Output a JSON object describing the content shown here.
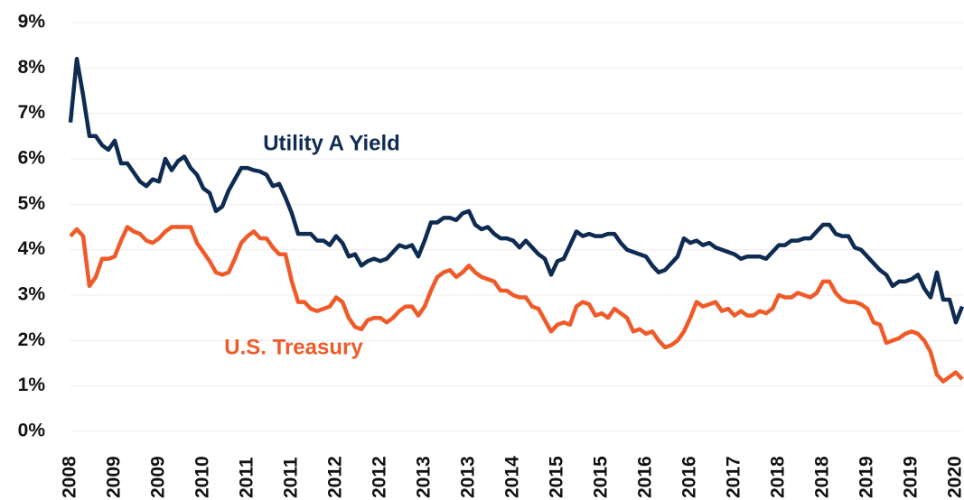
{
  "chart_data": {
    "type": "line",
    "categories": [
      "2008",
      null,
      null,
      null,
      null,
      null,
      null,
      "2009",
      null,
      null,
      null,
      null,
      null,
      null,
      "2009",
      null,
      null,
      null,
      null,
      null,
      null,
      "2010",
      null,
      null,
      null,
      null,
      null,
      null,
      "2011",
      null,
      null,
      null,
      null,
      null,
      null,
      "2011",
      null,
      null,
      null,
      null,
      null,
      null,
      "2012",
      null,
      null,
      null,
      null,
      null,
      null,
      "2012",
      null,
      null,
      null,
      null,
      null,
      null,
      "2013",
      null,
      null,
      null,
      null,
      null,
      null,
      "2013",
      null,
      null,
      null,
      null,
      null,
      null,
      "2014",
      null,
      null,
      null,
      null,
      null,
      null,
      "2015",
      null,
      null,
      null,
      null,
      null,
      null,
      "2015",
      null,
      null,
      null,
      null,
      null,
      null,
      "2016",
      null,
      null,
      null,
      null,
      null,
      null,
      "2016",
      null,
      null,
      null,
      null,
      null,
      null,
      "2017",
      null,
      null,
      null,
      null,
      null,
      null,
      "2018",
      null,
      null,
      null,
      null,
      null,
      null,
      "2018",
      null,
      null,
      null,
      null,
      null,
      null,
      "2019",
      null,
      null,
      null,
      null,
      null,
      null,
      "2019",
      null,
      null,
      null,
      null,
      null,
      null,
      "2020",
      null
    ],
    "series": [
      {
        "name": "Utility A Yield",
        "color": "#0e2b52",
        "values": [
          6.8,
          8.2,
          7.4,
          6.5,
          6.5,
          6.3,
          6.2,
          6.4,
          5.9,
          5.9,
          5.7,
          5.5,
          5.4,
          5.55,
          5.5,
          6.0,
          5.75,
          5.95,
          6.05,
          5.8,
          5.65,
          5.35,
          5.25,
          4.85,
          4.95,
          5.3,
          5.55,
          5.8,
          5.8,
          5.75,
          5.72,
          5.65,
          5.4,
          5.45,
          5.15,
          4.8,
          4.35,
          4.35,
          4.35,
          4.2,
          4.2,
          4.1,
          4.3,
          4.15,
          3.85,
          3.9,
          3.65,
          3.75,
          3.8,
          3.75,
          3.8,
          3.95,
          4.1,
          4.05,
          4.1,
          3.85,
          4.2,
          4.6,
          4.6,
          4.7,
          4.7,
          4.65,
          4.8,
          4.85,
          4.55,
          4.45,
          4.5,
          4.35,
          4.25,
          4.25,
          4.2,
          4.05,
          4.2,
          4.05,
          3.9,
          3.8,
          3.45,
          3.75,
          3.8,
          4.1,
          4.4,
          4.3,
          4.35,
          4.3,
          4.3,
          4.35,
          4.35,
          4.15,
          4.0,
          3.95,
          3.9,
          3.85,
          3.65,
          3.5,
          3.55,
          3.7,
          3.85,
          4.25,
          4.15,
          4.2,
          4.1,
          4.15,
          4.05,
          4.0,
          3.95,
          3.9,
          3.8,
          3.85,
          3.85,
          3.85,
          3.8,
          3.95,
          4.1,
          4.1,
          4.2,
          4.2,
          4.25,
          4.25,
          4.4,
          4.55,
          4.55,
          4.35,
          4.3,
          4.3,
          4.05,
          4.0,
          3.85,
          3.7,
          3.55,
          3.45,
          3.2,
          3.3,
          3.3,
          3.35,
          3.45,
          3.15,
          2.95,
          3.5,
          2.9,
          2.9,
          2.4,
          2.75
        ]
      },
      {
        "name": "U.S. Treasury",
        "color": "#ef5a28",
        "values": [
          4.3,
          4.45,
          4.3,
          3.2,
          3.4,
          3.8,
          3.8,
          3.85,
          4.2,
          4.5,
          4.4,
          4.35,
          4.2,
          4.15,
          4.25,
          4.4,
          4.5,
          4.5,
          4.5,
          4.5,
          4.15,
          3.95,
          3.75,
          3.5,
          3.45,
          3.5,
          3.8,
          4.15,
          4.3,
          4.4,
          4.25,
          4.25,
          4.05,
          3.9,
          3.9,
          3.3,
          2.85,
          2.85,
          2.7,
          2.65,
          2.7,
          2.75,
          2.95,
          2.85,
          2.5,
          2.3,
          2.25,
          2.45,
          2.5,
          2.5,
          2.4,
          2.5,
          2.65,
          2.75,
          2.75,
          2.55,
          2.75,
          3.1,
          3.4,
          3.5,
          3.55,
          3.4,
          3.5,
          3.65,
          3.5,
          3.4,
          3.35,
          3.3,
          3.1,
          3.1,
          3.0,
          2.95,
          2.95,
          2.75,
          2.7,
          2.45,
          2.2,
          2.35,
          2.4,
          2.35,
          2.75,
          2.85,
          2.8,
          2.55,
          2.6,
          2.5,
          2.7,
          2.6,
          2.5,
          2.2,
          2.25,
          2.15,
          2.2,
          2.0,
          1.85,
          1.9,
          2.0,
          2.2,
          2.5,
          2.85,
          2.75,
          2.8,
          2.85,
          2.65,
          2.7,
          2.55,
          2.65,
          2.55,
          2.55,
          2.65,
          2.6,
          2.7,
          3.0,
          2.95,
          2.95,
          3.05,
          3.0,
          2.95,
          3.05,
          3.3,
          3.3,
          3.05,
          2.9,
          2.85,
          2.85,
          2.8,
          2.7,
          2.4,
          2.35,
          1.95,
          2.0,
          2.05,
          2.15,
          2.2,
          2.15,
          2.0,
          1.75,
          1.25,
          1.1,
          1.2,
          1.3,
          1.15
        ]
      }
    ],
    "ylim": [
      0,
      9
    ],
    "yticks": [
      {
        "value": 0,
        "label": "0%"
      },
      {
        "value": 1,
        "label": "1%"
      },
      {
        "value": 2,
        "label": "2%"
      },
      {
        "value": 3,
        "label": "3%"
      },
      {
        "value": 4,
        "label": "4%"
      },
      {
        "value": 5,
        "label": "5%"
      },
      {
        "value": 6,
        "label": "6%"
      },
      {
        "value": 7,
        "label": "7%"
      },
      {
        "value": 8,
        "label": "8%"
      },
      {
        "value": 9,
        "label": "9%"
      }
    ],
    "grid": true
  }
}
